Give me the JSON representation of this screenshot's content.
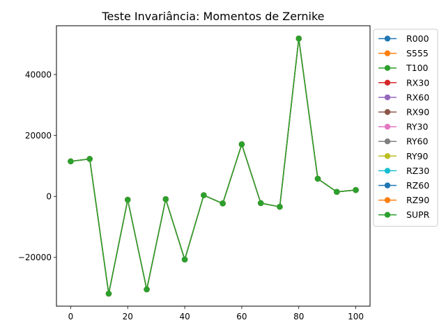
{
  "chart_data": {
    "type": "line",
    "title": "Teste Invariância: Momentos de Zernike",
    "xlabel": "",
    "ylabel": "",
    "xlim": [
      -5,
      105
    ],
    "ylim": [
      -36000,
      56000
    ],
    "xticks": [
      0,
      20,
      40,
      60,
      80,
      100
    ],
    "xtick_labels": [
      "0",
      "20",
      "40",
      "60",
      "80",
      "100"
    ],
    "yticks": [
      -20000,
      0,
      20000,
      40000
    ],
    "ytick_labels": [
      "−20000",
      "0",
      "20000",
      "40000"
    ],
    "grid": false,
    "legend_position": "outside-right",
    "x": [
      0,
      6.67,
      13.33,
      20,
      26.67,
      33.33,
      40,
      46.67,
      53.33,
      60,
      66.67,
      73.33,
      80,
      86.67,
      93.33,
      100
    ],
    "series": [
      {
        "name": "R000",
        "color": "#1f77b4",
        "values": [
          11500,
          12300,
          -31900,
          -1100,
          -30500,
          -900,
          -20700,
          400,
          -2300,
          17100,
          -2200,
          -3400,
          51800,
          5800,
          1500,
          2100
        ]
      },
      {
        "name": "S555",
        "color": "#ff7f0e",
        "values": [
          11500,
          12300,
          -31900,
          -1100,
          -30500,
          -900,
          -20700,
          400,
          -2300,
          17100,
          -2200,
          -3400,
          51800,
          5800,
          1500,
          2100
        ]
      },
      {
        "name": "T100",
        "color": "#2ca02c",
        "values": [
          11500,
          12300,
          -31900,
          -1100,
          -30500,
          -900,
          -20700,
          400,
          -2300,
          17100,
          -2200,
          -3400,
          51800,
          5800,
          1500,
          2100
        ]
      },
      {
        "name": "RX30",
        "color": "#d62728",
        "values": [
          11500,
          12300,
          -31900,
          -1100,
          -30500,
          -900,
          -20700,
          400,
          -2300,
          17100,
          -2200,
          -3400,
          51800,
          5800,
          1500,
          2100
        ]
      },
      {
        "name": "RX60",
        "color": "#9467bd",
        "values": [
          11500,
          12300,
          -31900,
          -1100,
          -30500,
          -900,
          -20700,
          400,
          -2300,
          17100,
          -2200,
          -3400,
          51800,
          5800,
          1500,
          2100
        ]
      },
      {
        "name": "RX90",
        "color": "#8c564b",
        "values": [
          11500,
          12300,
          -31900,
          -1100,
          -30500,
          -900,
          -20700,
          400,
          -2300,
          17100,
          -2200,
          -3400,
          51800,
          5800,
          1500,
          2100
        ]
      },
      {
        "name": "RY30",
        "color": "#e377c2",
        "values": [
          11500,
          12300,
          -31900,
          -1100,
          -30500,
          -900,
          -20700,
          400,
          -2300,
          17100,
          -2200,
          -3400,
          51800,
          5800,
          1500,
          2100
        ]
      },
      {
        "name": "RY60",
        "color": "#7f7f7f",
        "values": [
          11500,
          12300,
          -31900,
          -1100,
          -30500,
          -900,
          -20700,
          400,
          -2300,
          17100,
          -2200,
          -3400,
          51800,
          5800,
          1500,
          2100
        ]
      },
      {
        "name": "RY90",
        "color": "#bcbd22",
        "values": [
          11500,
          12300,
          -31900,
          -1100,
          -30500,
          -900,
          -20700,
          400,
          -2300,
          17100,
          -2200,
          -3400,
          51800,
          5800,
          1500,
          2100
        ]
      },
      {
        "name": "RZ30",
        "color": "#17becf",
        "values": [
          11500,
          12300,
          -31900,
          -1100,
          -30500,
          -900,
          -20700,
          400,
          -2300,
          17100,
          -2200,
          -3400,
          51800,
          5800,
          1500,
          2100
        ]
      },
      {
        "name": "RZ60",
        "color": "#1f77b4",
        "values": [
          11500,
          12300,
          -31900,
          -1100,
          -30500,
          -900,
          -20700,
          400,
          -2300,
          17100,
          -2200,
          -3400,
          51800,
          5800,
          1500,
          2100
        ]
      },
      {
        "name": "RZ90",
        "color": "#ff7f0e",
        "values": [
          11500,
          12300,
          -31900,
          -1100,
          -30500,
          -900,
          -20700,
          400,
          -2300,
          17100,
          -2200,
          -3400,
          51800,
          5800,
          1500,
          2100
        ]
      },
      {
        "name": "SUPR",
        "color": "#2ca02c",
        "values": [
          11500,
          12300,
          -31900,
          -1100,
          -30500,
          -900,
          -20700,
          400,
          -2300,
          17100,
          -2200,
          -3400,
          51800,
          5800,
          1500,
          2100
        ]
      }
    ]
  }
}
